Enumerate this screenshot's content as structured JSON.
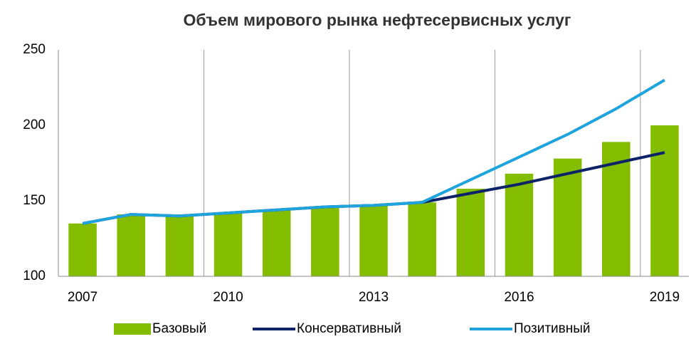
{
  "chart_data": {
    "type": "bar",
    "title": "Объем мирового рынка нефтесервисных услуг",
    "categories": [
      "2007",
      null,
      null,
      "2010",
      null,
      null,
      "2013",
      null,
      null,
      "2016",
      null,
      null,
      "2019"
    ],
    "series": [
      {
        "name": "Базовый",
        "type": "bar",
        "color": "#84bd00",
        "values": [
          135,
          141,
          140,
          142,
          144,
          146,
          147,
          149,
          158,
          168,
          178,
          189,
          200
        ]
      },
      {
        "name": "Консервативный",
        "type": "line",
        "color": "#0c2368",
        "values": [
          135,
          141,
          140,
          142,
          144,
          146,
          147,
          149,
          155,
          161,
          168,
          175,
          182
        ]
      },
      {
        "name": "Позитивный",
        "type": "line",
        "color": "#1ea3dc",
        "values": [
          135,
          141,
          140,
          142,
          144,
          146,
          147,
          149,
          164,
          179,
          194,
          211,
          230
        ]
      }
    ],
    "ylim": [
      100,
      250
    ],
    "yticks": [
      100,
      150,
      200,
      250
    ],
    "legend": "bottom"
  }
}
